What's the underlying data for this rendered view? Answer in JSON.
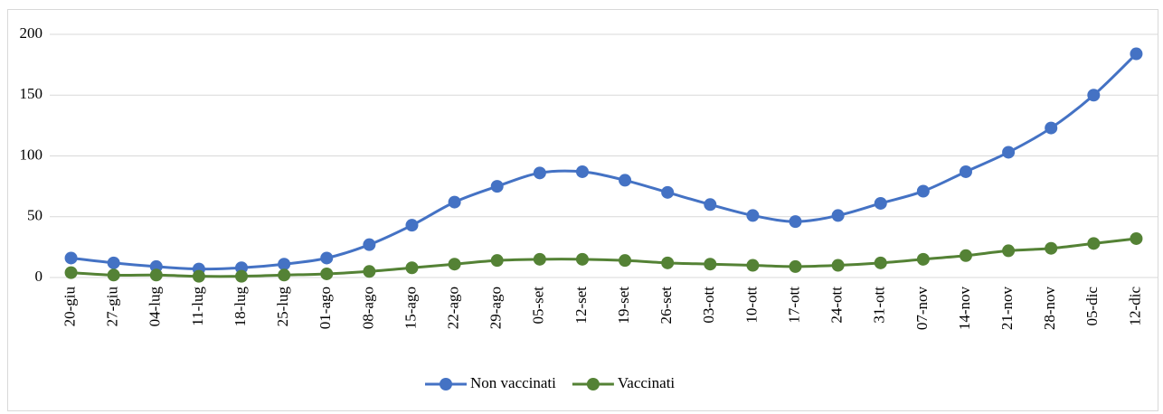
{
  "chart_data": {
    "type": "line",
    "categories": [
      "20-giu",
      "27-giu",
      "04-lug",
      "11-lug",
      "18-lug",
      "25-lug",
      "01-ago",
      "08-ago",
      "15-ago",
      "22-ago",
      "29-ago",
      "05-set",
      "12-set",
      "19-set",
      "26-set",
      "03-ott",
      "10-ott",
      "17-ott",
      "24-ott",
      "31-ott",
      "07-nov",
      "14-nov",
      "21-nov",
      "28-nov",
      "05-dic",
      "12-dic"
    ],
    "series": [
      {
        "name": "Non vaccinati",
        "color": "#4472c4",
        "values": [
          16,
          12,
          9,
          7,
          8,
          11,
          16,
          27,
          43,
          62,
          75,
          86,
          87,
          80,
          70,
          60,
          51,
          46,
          51,
          61,
          71,
          87,
          103,
          123,
          150,
          184
        ]
      },
      {
        "name": "Vaccinati",
        "color": "#548235",
        "values": [
          4,
          2,
          2,
          1,
          1,
          2,
          3,
          5,
          8,
          11,
          14,
          15,
          15,
          14,
          12,
          11,
          10,
          9,
          10,
          12,
          15,
          18,
          22,
          24,
          28,
          32
        ]
      }
    ],
    "ylim": [
      0,
      200
    ],
    "yticks": [
      0,
      50,
      100,
      150,
      200
    ],
    "grid": true,
    "legend": "bottom"
  }
}
